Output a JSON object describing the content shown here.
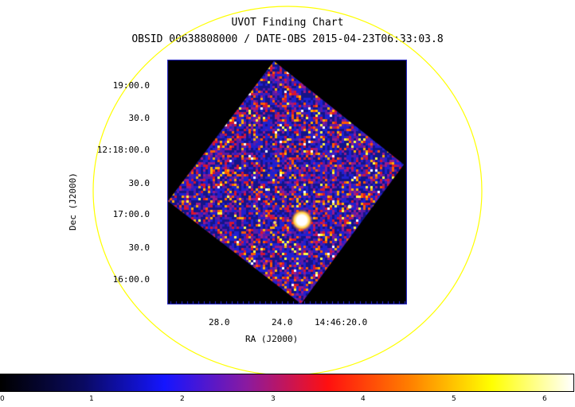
{
  "header": {
    "title": "UVOT Finding Chart",
    "subtitle": "OBSID 00638808000 / DATE-OBS 2015-04-23T06:33:03.8"
  },
  "axes": {
    "xlabel": "RA (J2000)",
    "ylabel": "Dec (J2000)",
    "dec_ticks": [
      "19:00.0",
      "30.0",
      "12:18:00.0",
      "30.0",
      "17:00.0",
      "30.0",
      "16:00.0"
    ],
    "ra_ticks": [
      "28.0",
      "24.0",
      "14:46:20.0"
    ]
  },
  "colorbar": {
    "ticks": [
      "0",
      "1",
      "2",
      "3",
      "4",
      "5",
      "6"
    ],
    "stops": [
      "#000000",
      "#0a0a60",
      "#1515ff",
      "#8a1aa0",
      "#ff1010",
      "#ff7f00",
      "#ffff00",
      "#ffffff"
    ]
  },
  "colors": {
    "circle": "#ffff00",
    "frame": "#2b2bd6",
    "source": "#ffffff"
  }
}
